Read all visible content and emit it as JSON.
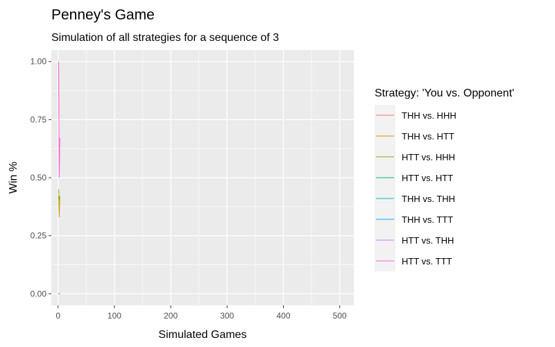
{
  "chart_data": {
    "type": "line",
    "title": "Penney's Game",
    "subtitle": "Simulation of all strategies for a sequence of 3",
    "xlabel": "Simulated Games",
    "ylabel": "Win %",
    "xlim": [
      -12,
      525
    ],
    "ylim": [
      -0.05,
      1.05
    ],
    "x_ticks": [
      0,
      100,
      200,
      300,
      400,
      500
    ],
    "x_tick_labels": [
      "0",
      "100",
      "200",
      "300",
      "400",
      "500"
    ],
    "y_ticks": [
      0,
      0.25,
      0.5,
      0.75,
      1.0
    ],
    "y_tick_labels": [
      "0.00",
      "0.25",
      "0.50",
      "0.75",
      "1.00"
    ],
    "grid": true,
    "legend_title": "Strategy: 'You vs. Opponent'",
    "legend_position": "right",
    "series": [
      {
        "name": "THH vs. HHH",
        "color": "#F8766D",
        "x": [
          1,
          2,
          3
        ],
        "y": [
          0.0,
          0.0,
          0.0
        ]
      },
      {
        "name": "THH vs. HTT",
        "color": "#CD9600",
        "x": [
          1,
          2,
          3
        ],
        "y": [
          0.42,
          0.33,
          0.42
        ]
      },
      {
        "name": "HTT vs. HHH",
        "color": "#7CAE00",
        "x": [
          1,
          2,
          3
        ],
        "y": [
          0.45,
          0.4,
          0.42
        ]
      },
      {
        "name": "HTT vs. HTT",
        "color": "#00BE67",
        "x": [
          1,
          2,
          3
        ],
        "y": [
          0.0,
          0.0,
          0.0
        ]
      },
      {
        "name": "THH vs. THH",
        "color": "#00BFC4",
        "x": [
          1,
          2,
          3
        ],
        "y": [
          0.0,
          0.0,
          0.0
        ]
      },
      {
        "name": "THH vs. TTT",
        "color": "#00A9FF",
        "x": [
          1,
          2,
          3
        ],
        "y": [
          0.0,
          0.0,
          0.0
        ]
      },
      {
        "name": "HTT vs. THH",
        "color": "#C77CFF",
        "x": [
          1,
          2,
          3
        ],
        "y": [
          1.0,
          0.5,
          0.67
        ]
      },
      {
        "name": "HTT vs. TTT",
        "color": "#FF61CC",
        "x": [
          1,
          2,
          3
        ],
        "y": [
          1.0,
          0.5,
          0.67
        ]
      }
    ]
  }
}
